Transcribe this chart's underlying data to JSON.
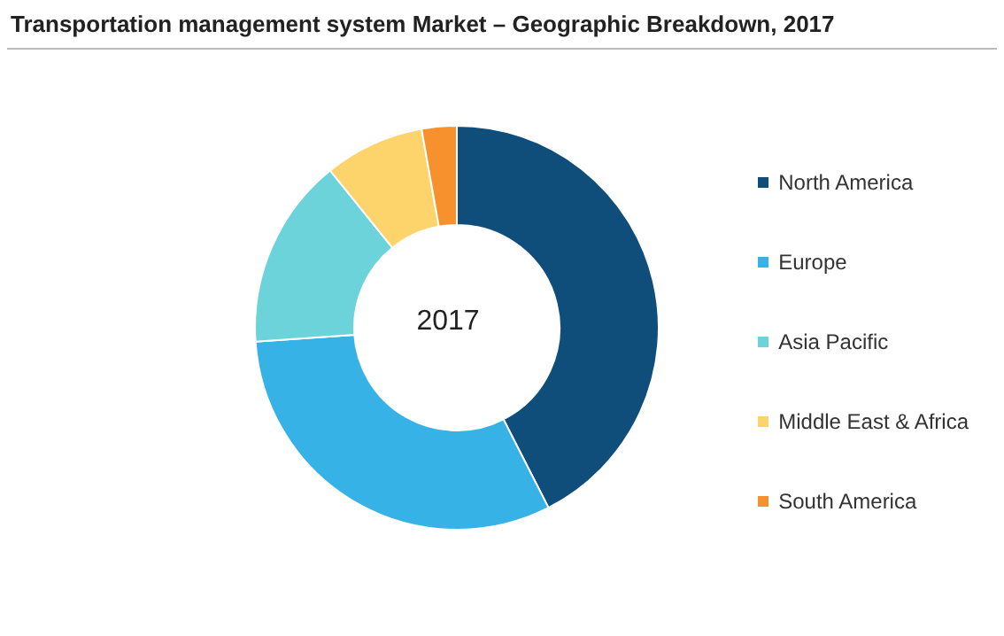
{
  "chart_data": {
    "type": "donut",
    "title": "Transportation management system Market – Geographic Breakdown, 2017",
    "categories": [
      "North America",
      "Europe",
      "Asia Pacific",
      "Middle East & Africa",
      "South America"
    ],
    "values": [
      42.5,
      31.4,
      15.3,
      8,
      2.8
    ],
    "colors": [
      "#0f4e7a",
      "#36b2e6",
      "#6dd3da",
      "#fdd36b",
      "#f7912d"
    ],
    "legend": "right",
    "annotations": [
      "2017"
    ]
  }
}
